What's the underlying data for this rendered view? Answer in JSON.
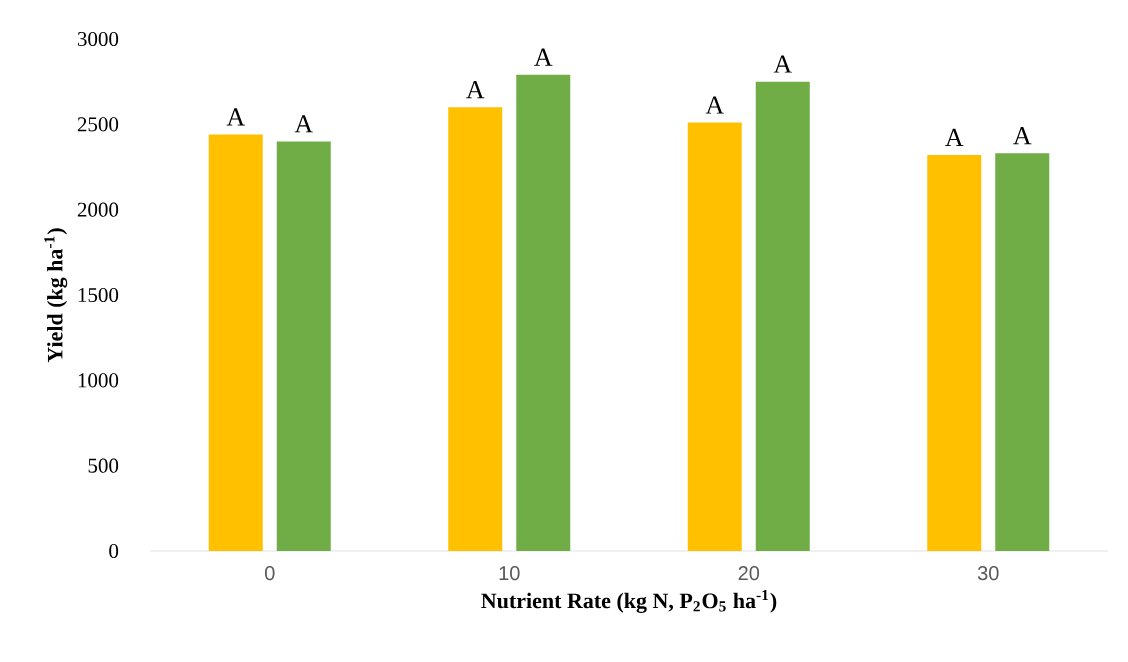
{
  "chart_data": {
    "type": "bar",
    "xlabel": "Nutrient Rate (kg N, P$_{2}$O$_{5}$ ha$^{-1}$)",
    "ylabel": "Yield (kg ha$^{-1}$)",
    "categories": [
      "0",
      "10",
      "20",
      "30"
    ],
    "series": [
      {
        "color": "#ffc000",
        "values": [
          2440,
          2600,
          2510,
          2320
        ],
        "value_labels": [
          "A",
          "A",
          "A",
          "A"
        ]
      },
      {
        "color": "#70ad47",
        "values": [
          2400,
          2790,
          2750,
          2330
        ],
        "value_labels": [
          "A",
          "A",
          "A",
          "A"
        ]
      }
    ],
    "ylim": [
      0,
      3000
    ],
    "yticks": [
      0,
      500,
      1000,
      1500,
      2000,
      2500,
      3000
    ]
  }
}
